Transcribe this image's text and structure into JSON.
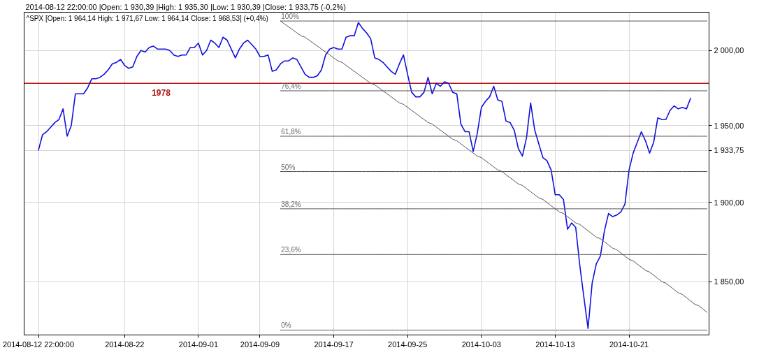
{
  "chart_data": {
    "type": "line",
    "title": "^SPX [Open: 1 964,14 High: 1 971,67 Low: 1 964,14 Close: 1 968,53] (+0,4%)",
    "annotations": [
      "2014-08-12 22:00:00 |Open: 1 930,39 |High: 1 935,30 |Low: 1 930,39 |Close: 1 933,75 (-0,2%)"
    ],
    "categories": [
      null,
      null,
      null,
      "2014-08-12 22:00:00",
      null,
      null,
      null,
      null,
      null,
      null,
      null,
      null,
      null,
      null,
      null,
      null,
      null,
      null,
      null,
      null,
      null,
      null,
      null,
      null,
      "2014-08-22",
      null,
      null,
      null,
      null,
      null,
      null,
      null,
      null,
      null,
      null,
      null,
      null,
      null,
      null,
      null,
      null,
      null,
      "2014-09-01",
      null,
      null,
      null,
      null,
      null,
      null,
      null,
      null,
      null,
      null,
      null,
      null,
      null,
      null,
      "2014-09-09",
      null,
      null,
      null,
      null,
      null,
      null,
      null,
      null,
      null,
      null,
      null,
      null,
      null,
      null,
      null,
      null,
      null,
      "2014-09-17",
      null,
      null,
      null,
      null,
      null,
      null,
      null,
      null,
      null,
      null,
      null,
      null,
      null,
      null,
      null,
      null,
      null,
      "2014-09-25",
      null,
      null,
      null,
      null,
      null,
      null,
      null,
      null,
      null,
      null,
      null,
      null,
      null,
      null,
      null,
      null,
      null,
      "2014-10-03",
      null,
      null,
      null,
      null,
      null,
      null,
      null,
      null,
      null,
      null,
      null,
      null,
      null,
      null,
      null,
      null,
      null,
      "2014-10-13",
      null,
      null,
      null,
      null,
      null,
      null,
      null,
      null,
      null,
      null,
      null,
      null,
      null,
      null,
      null,
      null,
      null,
      "2014-10-21",
      null,
      null,
      null,
      null,
      null,
      null,
      null,
      null,
      null,
      null,
      null,
      null,
      null,
      null,
      null,
      null,
      null,
      null,
      null
    ],
    "series": [
      {
        "color": "#1010e0",
        "values": [
          null,
          null,
          null,
          1934,
          1944,
          1946,
          1949,
          1952,
          1954,
          1961,
          1943,
          1950,
          1971,
          1971,
          1971,
          1975,
          1981,
          1981,
          1982,
          1984,
          1987,
          1991,
          1992,
          1994,
          1990,
          1988,
          1989,
          1996,
          2000,
          1999,
          2002,
          2003,
          2001,
          2001,
          2001,
          2000,
          1997,
          1996,
          1997,
          1997,
          2002,
          2002,
          2005,
          1997,
          2000,
          2007,
          2005,
          2002,
          2009,
          2007,
          2001,
          1995,
          2001,
          2005,
          2007,
          2004,
          2001,
          1996,
          1996,
          1997,
          1986,
          1987,
          1991,
          1993,
          1993,
          1995,
          1994,
          1989,
          1984,
          1982,
          1982,
          1983,
          1987,
          1997,
          2001,
          2002,
          2001,
          2001,
          2009,
          2010,
          2010,
          2019,
          2015,
          2012,
          2008,
          1995,
          1994,
          1992,
          1989,
          1986,
          1984,
          1991,
          1997,
          1984,
          1972,
          1969,
          1969,
          1972,
          1982,
          1971,
          1978,
          1976,
          1979,
          1978,
          1972,
          1971,
          1951,
          1946,
          1946,
          1933,
          1945,
          1962,
          1966,
          1969,
          1976,
          1967,
          1966,
          1953,
          1952,
          1947,
          1935,
          1930,
          1942,
          1965,
          1947,
          1938,
          1929,
          1927,
          1921,
          1905,
          1905,
          1902,
          1883,
          1887,
          1884,
          1860,
          1840,
          1821,
          1849,
          1861,
          1866,
          1882,
          1893,
          1891,
          1892,
          1894,
          1899,
          1921,
          1932,
          1939,
          1946,
          1940,
          1932,
          1939,
          1955,
          1954,
          1954,
          1960,
          1963,
          1961,
          1962,
          1961,
          1968,
          null,
          null,
          null,
          null
        ]
      },
      {
        "type": "line",
        "color": "#555555",
        "values": [
          null,
          null,
          null,
          null,
          null,
          null,
          null,
          null,
          null,
          null,
          null,
          null,
          null,
          null,
          null,
          null,
          null,
          null,
          null,
          null,
          null,
          null,
          null,
          null,
          null,
          null,
          null,
          null,
          null,
          null,
          null,
          null,
          null,
          null,
          null,
          null,
          null,
          null,
          null,
          null,
          null,
          null,
          null,
          null,
          null,
          null,
          null,
          null,
          null,
          null,
          null,
          null,
          null,
          null,
          null,
          null,
          null,
          null,
          null,
          null,
          null,
          null,
          2020,
          2018,
          2016,
          2014,
          2012,
          2010,
          2009,
          2007,
          2005,
          2003,
          2001,
          1999,
          1997,
          1995,
          1993,
          1992,
          1990,
          1988,
          1986,
          1984,
          1982,
          1980,
          1978,
          1977,
          1975,
          1973,
          1971,
          1969,
          1967,
          1965,
          1964,
          1962,
          1960,
          1958,
          1956,
          1954,
          1952,
          1951,
          1949,
          1947,
          1945,
          1943,
          1941,
          1940,
          1938,
          1936,
          1934,
          1932,
          1930,
          1929,
          1927,
          1925,
          1923,
          1921,
          1920,
          1918,
          1916,
          1914,
          1912,
          1911,
          1909,
          1907,
          1905,
          1903,
          1902,
          1900,
          1898,
          1896,
          1894,
          1893,
          1891,
          1889,
          1887,
          1886,
          1884,
          1882,
          1880,
          1878,
          1877,
          1875,
          1873,
          1871,
          1870,
          1868,
          1866,
          1864,
          1863,
          1861,
          1859,
          1857,
          1856,
          1854,
          1852,
          1850,
          1849,
          1847,
          1845,
          1843,
          1842,
          1840,
          1838,
          1836,
          1835,
          1833,
          1831
        ]
      },
      {
        "name": "100%",
        "color": "#555555",
        "values": [
          null,
          null,
          null,
          null,
          null,
          null,
          null,
          null,
          null,
          null,
          null,
          null,
          null,
          null,
          null,
          null,
          null,
          null,
          null,
          null,
          null,
          null,
          null,
          null,
          null,
          null,
          null,
          null,
          null,
          null,
          null,
          null,
          null,
          null,
          null,
          null,
          null,
          null,
          null,
          null,
          null,
          null,
          null,
          null,
          null,
          null,
          null,
          null,
          null,
          null,
          null,
          null,
          null,
          null,
          null,
          null,
          null,
          null,
          null,
          null,
          null,
          null,
          2020,
          2020,
          2020,
          2020,
          2020,
          2020,
          2020,
          2020,
          2020,
          2020,
          2020,
          2020,
          2020,
          2020,
          2020,
          2020,
          2020,
          2020,
          2020,
          2020,
          2020,
          2020,
          2020,
          2020,
          2020,
          2020,
          2020,
          2020,
          2020,
          2020,
          2020,
          2020,
          2020,
          2020,
          2020,
          2020,
          2020,
          2020,
          2020,
          2020,
          2020,
          2020,
          2020,
          2020,
          2020,
          2020,
          2020,
          2020,
          2020,
          2020,
          2020,
          2020,
          2020,
          2020,
          2020,
          2020,
          2020,
          2020,
          2020,
          2020,
          2020,
          2020,
          2020,
          2020,
          2020,
          2020,
          2020,
          2020,
          2020,
          2020,
          2020,
          2020,
          2020,
          2020,
          2020,
          2020,
          2020,
          2020,
          2020,
          2020,
          2020,
          2020,
          2020,
          2020,
          2020,
          2020,
          2020,
          2020,
          2020,
          2020,
          2020,
          2020,
          2020,
          2020,
          2020,
          2020,
          2020,
          2020,
          2020,
          2020,
          2020,
          2020,
          2020,
          2020,
          2020
        ]
      },
      {
        "name": "76,4%",
        "color": "#555555",
        "values": [
          null,
          null,
          null,
          null,
          null,
          null,
          null,
          null,
          null,
          null,
          null,
          null,
          null,
          null,
          null,
          null,
          null,
          null,
          null,
          null,
          null,
          null,
          null,
          null,
          null,
          null,
          null,
          null,
          null,
          null,
          null,
          null,
          null,
          null,
          null,
          null,
          null,
          null,
          null,
          null,
          null,
          null,
          null,
          null,
          null,
          null,
          null,
          null,
          null,
          null,
          null,
          null,
          null,
          null,
          null,
          null,
          null,
          null,
          null,
          null,
          null,
          null,
          1973,
          1973,
          1973,
          1973,
          1973,
          1973,
          1973,
          1973,
          1973,
          1973,
          1973,
          1973,
          1973,
          1973,
          1973,
          1973,
          1973,
          1973,
          1973,
          1973,
          1973,
          1973,
          1973,
          1973,
          1973,
          1973,
          1973,
          1973,
          1973,
          1973,
          1973,
          1973,
          1973,
          1973,
          1973,
          1973,
          1973,
          1973,
          1973,
          1973,
          1973,
          1973,
          1973,
          1973,
          1973,
          1973,
          1973,
          1973,
          1973,
          1973,
          1973,
          1973,
          1973,
          1973,
          1973,
          1973,
          1973,
          1973,
          1973,
          1973,
          1973,
          1973,
          1973,
          1973,
          1973,
          1973,
          1973,
          1973,
          1973,
          1973,
          1973,
          1973,
          1973,
          1973,
          1973,
          1973,
          1973,
          1973,
          1973,
          1973,
          1973,
          1973,
          1973,
          1973,
          1973,
          1973,
          1973,
          1973,
          1973,
          1973,
          1973,
          1973,
          1973,
          1973,
          1973,
          1973,
          1973,
          1973,
          1973,
          1973,
          1973,
          1973,
          1973,
          1973,
          1973
        ]
      },
      {
        "name": "61,8%",
        "color": "#555555",
        "values": [
          null,
          null,
          null,
          null,
          null,
          null,
          null,
          null,
          null,
          null,
          null,
          null,
          null,
          null,
          null,
          null,
          null,
          null,
          null,
          null,
          null,
          null,
          null,
          null,
          null,
          null,
          null,
          null,
          null,
          null,
          null,
          null,
          null,
          null,
          null,
          null,
          null,
          null,
          null,
          null,
          null,
          null,
          null,
          null,
          null,
          null,
          null,
          null,
          null,
          null,
          null,
          null,
          null,
          null,
          null,
          null,
          null,
          null,
          null,
          null,
          null,
          null,
          1943,
          1943,
          1943,
          1943,
          1943,
          1943,
          1943,
          1943,
          1943,
          1943,
          1943,
          1943,
          1943,
          1943,
          1943,
          1943,
          1943,
          1943,
          1943,
          1943,
          1943,
          1943,
          1943,
          1943,
          1943,
          1943,
          1943,
          1943,
          1943,
          1943,
          1943,
          1943,
          1943,
          1943,
          1943,
          1943,
          1943,
          1943,
          1943,
          1943,
          1943,
          1943,
          1943,
          1943,
          1943,
          1943,
          1943,
          1943,
          1943,
          1943,
          1943,
          1943,
          1943,
          1943,
          1943,
          1943,
          1943,
          1943,
          1943,
          1943,
          1943,
          1943,
          1943,
          1943,
          1943,
          1943,
          1943,
          1943,
          1943,
          1943,
          1943,
          1943,
          1943,
          1943,
          1943,
          1943,
          1943,
          1943,
          1943,
          1943,
          1943,
          1943,
          1943,
          1943,
          1943,
          1943,
          1943,
          1943,
          1943,
          1943,
          1943,
          1943,
          1943,
          1943,
          1943,
          1943,
          1943,
          1943,
          1943,
          1943,
          1943,
          1943,
          1943,
          1943,
          1943
        ]
      },
      {
        "name": "50%",
        "color": "#555555",
        "values": [
          null,
          null,
          null,
          null,
          null,
          null,
          null,
          null,
          null,
          null,
          null,
          null,
          null,
          null,
          null,
          null,
          null,
          null,
          null,
          null,
          null,
          null,
          null,
          null,
          null,
          null,
          null,
          null,
          null,
          null,
          null,
          null,
          null,
          null,
          null,
          null,
          null,
          null,
          null,
          null,
          null,
          null,
          null,
          null,
          null,
          null,
          null,
          null,
          null,
          null,
          null,
          null,
          null,
          null,
          null,
          null,
          null,
          null,
          null,
          null,
          null,
          null,
          1920,
          1920,
          1920,
          1920,
          1920,
          1920,
          1920,
          1920,
          1920,
          1920,
          1920,
          1920,
          1920,
          1920,
          1920,
          1920,
          1920,
          1920,
          1920,
          1920,
          1920,
          1920,
          1920,
          1920,
          1920,
          1920,
          1920,
          1920,
          1920,
          1920,
          1920,
          1920,
          1920,
          1920,
          1920,
          1920,
          1920,
          1920,
          1920,
          1920,
          1920,
          1920,
          1920,
          1920,
          1920,
          1920,
          1920,
          1920,
          1920,
          1920,
          1920,
          1920,
          1920,
          1920,
          1920,
          1920,
          1920,
          1920,
          1920,
          1920,
          1920,
          1920,
          1920,
          1920,
          1920,
          1920,
          1920,
          1920,
          1920,
          1920,
          1920,
          1920,
          1920,
          1920,
          1920,
          1920,
          1920,
          1920,
          1920,
          1920,
          1920,
          1920,
          1920,
          1920,
          1920,
          1920,
          1920,
          1920,
          1920,
          1920,
          1920,
          1920,
          1920,
          1920,
          1920,
          1920,
          1920,
          1920,
          1920,
          1920,
          1920,
          1920,
          1920,
          1920,
          1920
        ]
      },
      {
        "name": "38,2%",
        "color": "#555555",
        "values": [
          null,
          null,
          null,
          null,
          null,
          null,
          null,
          null,
          null,
          null,
          null,
          null,
          null,
          null,
          null,
          null,
          null,
          null,
          null,
          null,
          null,
          null,
          null,
          null,
          null,
          null,
          null,
          null,
          null,
          null,
          null,
          null,
          null,
          null,
          null,
          null,
          null,
          null,
          null,
          null,
          null,
          null,
          null,
          null,
          null,
          null,
          null,
          null,
          null,
          null,
          null,
          null,
          null,
          null,
          null,
          null,
          null,
          null,
          null,
          null,
          null,
          null,
          1896,
          1896,
          1896,
          1896,
          1896,
          1896,
          1896,
          1896,
          1896,
          1896,
          1896,
          1896,
          1896,
          1896,
          1896,
          1896,
          1896,
          1896,
          1896,
          1896,
          1896,
          1896,
          1896,
          1896,
          1896,
          1896,
          1896,
          1896,
          1896,
          1896,
          1896,
          1896,
          1896,
          1896,
          1896,
          1896,
          1896,
          1896,
          1896,
          1896,
          1896,
          1896,
          1896,
          1896,
          1896,
          1896,
          1896,
          1896,
          1896,
          1896,
          1896,
          1896,
          1896,
          1896,
          1896,
          1896,
          1896,
          1896,
          1896,
          1896,
          1896,
          1896,
          1896,
          1896,
          1896,
          1896,
          1896,
          1896,
          1896,
          1896,
          1896,
          1896,
          1896,
          1896,
          1896,
          1896,
          1896,
          1896,
          1896,
          1896,
          1896,
          1896,
          1896,
          1896,
          1896,
          1896,
          1896,
          1896,
          1896,
          1896,
          1896,
          1896,
          1896,
          1896,
          1896,
          1896,
          1896,
          1896,
          1896,
          1896,
          1896,
          1896,
          1896,
          1896,
          1896
        ]
      },
      {
        "name": "23,6%",
        "color": "#555555",
        "values": [
          null,
          null,
          null,
          null,
          null,
          null,
          null,
          null,
          null,
          null,
          null,
          null,
          null,
          null,
          null,
          null,
          null,
          null,
          null,
          null,
          null,
          null,
          null,
          null,
          null,
          null,
          null,
          null,
          null,
          null,
          null,
          null,
          null,
          null,
          null,
          null,
          null,
          null,
          null,
          null,
          null,
          null,
          null,
          null,
          null,
          null,
          null,
          null,
          null,
          null,
          null,
          null,
          null,
          null,
          null,
          null,
          null,
          null,
          null,
          null,
          null,
          null,
          1867,
          1867,
          1867,
          1867,
          1867,
          1867,
          1867,
          1867,
          1867,
          1867,
          1867,
          1867,
          1867,
          1867,
          1867,
          1867,
          1867,
          1867,
          1867,
          1867,
          1867,
          1867,
          1867,
          1867,
          1867,
          1867,
          1867,
          1867,
          1867,
          1867,
          1867,
          1867,
          1867,
          1867,
          1867,
          1867,
          1867,
          1867,
          1867,
          1867,
          1867,
          1867,
          1867,
          1867,
          1867,
          1867,
          1867,
          1867,
          1867,
          1867,
          1867,
          1867,
          1867,
          1867,
          1867,
          1867,
          1867,
          1867,
          1867,
          1867,
          1867,
          1867,
          1867,
          1867,
          1867,
          1867,
          1867,
          1867,
          1867,
          1867,
          1867,
          1867,
          1867,
          1867,
          1867,
          1867,
          1867,
          1867,
          1867,
          1867,
          1867,
          1867,
          1867,
          1867,
          1867,
          1867,
          1867,
          1867,
          1867,
          1867,
          1867,
          1867,
          1867,
          1867,
          1867,
          1867,
          1867,
          1867,
          1867,
          1867,
          1867,
          1867,
          1867,
          1867,
          1867
        ]
      },
      {
        "name": "0%",
        "color": "#555555",
        "values": [
          null,
          null,
          null,
          null,
          null,
          null,
          null,
          null,
          null,
          null,
          null,
          null,
          null,
          null,
          null,
          null,
          null,
          null,
          null,
          null,
          null,
          null,
          null,
          null,
          null,
          null,
          null,
          null,
          null,
          null,
          null,
          null,
          null,
          null,
          null,
          null,
          null,
          null,
          null,
          null,
          null,
          null,
          null,
          null,
          null,
          null,
          null,
          null,
          null,
          null,
          null,
          null,
          null,
          null,
          null,
          null,
          null,
          null,
          null,
          null,
          null,
          null,
          1820,
          1820,
          1820,
          1820,
          1820,
          1820,
          1820,
          1820,
          1820,
          1820,
          1820,
          1820,
          1820,
          1820,
          1820,
          1820,
          1820,
          1820,
          1820,
          1820,
          1820,
          1820,
          1820,
          1820,
          1820,
          1820,
          1820,
          1820,
          1820,
          1820,
          1820,
          1820,
          1820,
          1820,
          1820,
          1820,
          1820,
          1820,
          1820,
          1820,
          1820,
          1820,
          1820,
          1820,
          1820,
          1820,
          1820,
          1820,
          1820,
          1820,
          1820,
          1820,
          1820,
          1820,
          1820,
          1820,
          1820,
          1820,
          1820,
          1820,
          1820,
          1820,
          1820,
          1820,
          1820,
          1820,
          1820,
          1820,
          1820,
          1820,
          1820,
          1820,
          1820,
          1820,
          1820,
          1820,
          1820,
          1820,
          1820,
          1820,
          1820,
          1820,
          1820,
          1820,
          1820,
          1820,
          1820,
          1820,
          1820,
          1820,
          1820,
          1820,
          1820,
          1820,
          1820,
          1820,
          1820,
          1820,
          1820,
          1820,
          1820,
          1820,
          1820,
          1820,
          1820
        ]
      }
    ],
    "ylim": [
      1817,
      2026
    ],
    "yticks": [
      {
        "value": 1850,
        "label": "1 850,00"
      },
      {
        "value": 1900,
        "label": "1 900,00"
      },
      {
        "value": 1933.75,
        "label": "1 933,75"
      },
      {
        "value": 1950,
        "label": "1 950,00"
      },
      {
        "value": 2000,
        "label": "2 000,00"
      }
    ],
    "log": true,
    "grid": true,
    "ref_lines": [
      {
        "axis": "y",
        "value": 1978,
        "label": "1978",
        "color": "#b01818"
      }
    ]
  }
}
